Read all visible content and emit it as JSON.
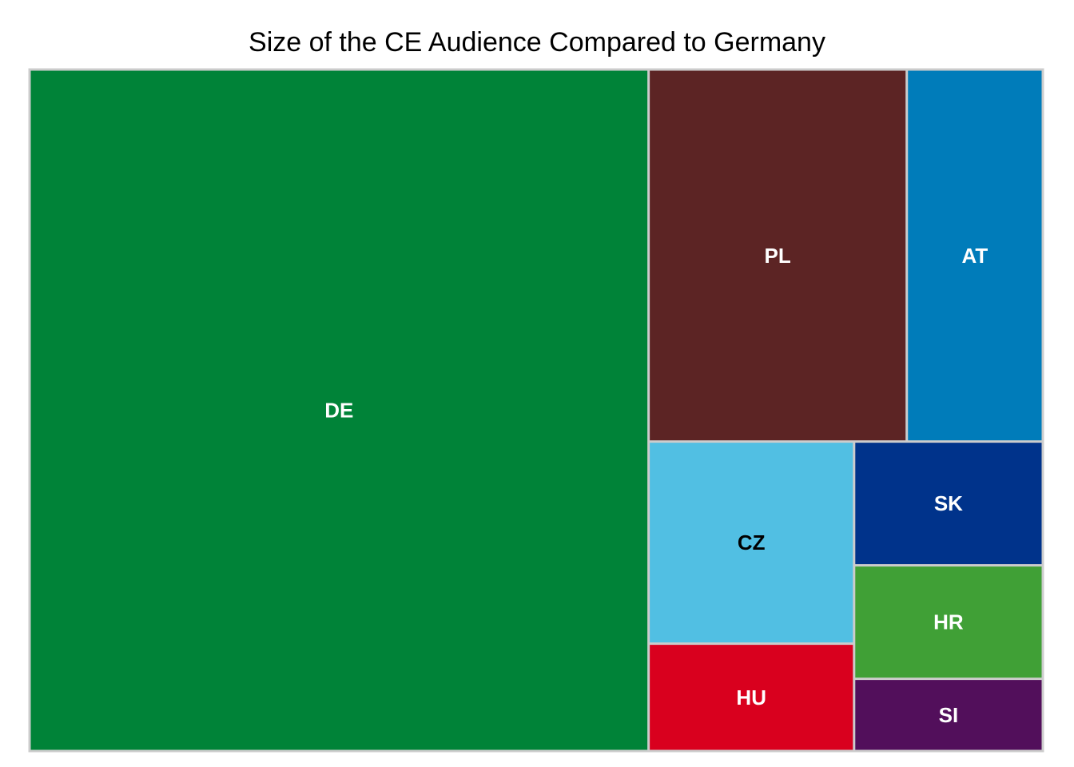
{
  "chart_data": {
    "type": "treemap",
    "title": "Size of the CE Audience Compared to Germany",
    "border_color": "#cccccc",
    "items": [
      {
        "label": "DE",
        "value": 650,
        "color": "#008338",
        "text_color": "#ffffff"
      },
      {
        "label": "PL",
        "value": 148,
        "color": "#5c2424",
        "text_color": "#ffffff"
      },
      {
        "label": "AT",
        "value": 78,
        "color": "#007cba",
        "text_color": "#ffffff"
      },
      {
        "label": "CZ",
        "value": 64,
        "color": "#51bfe3",
        "text_color": "#000000"
      },
      {
        "label": "HU",
        "value": 34,
        "color": "#d9001e",
        "text_color": "#ffffff"
      },
      {
        "label": "SK",
        "value": 36,
        "color": "#00338b",
        "text_color": "#ffffff"
      },
      {
        "label": "HR",
        "value": 33,
        "color": "#40a036",
        "text_color": "#ffffff"
      },
      {
        "label": "SI",
        "value": 21,
        "color": "#520f5b",
        "text_color": "#ffffff"
      }
    ]
  }
}
